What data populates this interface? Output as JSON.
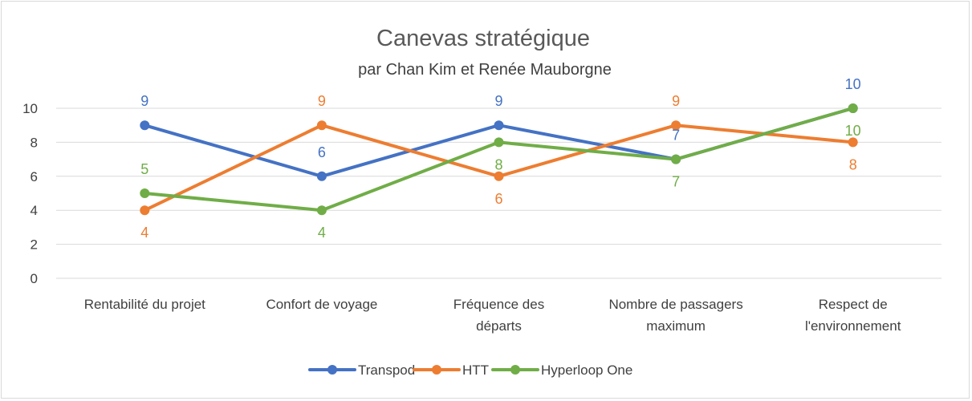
{
  "chart_data": {
    "type": "line",
    "title": "Canevas stratégique",
    "subtitle": "par Chan Kim et Renée Mauborgne",
    "categories": [
      [
        "Rentabilité du projet"
      ],
      [
        "Confort de voyage"
      ],
      [
        "Fréquence des",
        "départs"
      ],
      [
        "Nombre de passagers",
        "maximum"
      ],
      [
        "Respect de",
        "l'environnement"
      ]
    ],
    "ylim": [
      0,
      10
    ],
    "yticks": [
      "0",
      "2",
      "4",
      "6",
      "8",
      "10"
    ],
    "grid": true,
    "legend_position": "bottom",
    "series": [
      {
        "name": "Transpod",
        "color": "#4472c4",
        "values": [
          9,
          6,
          9,
          7,
          10
        ],
        "label_pos": [
          "above",
          "above",
          "above",
          "above",
          "above"
        ]
      },
      {
        "name": "HTT",
        "color": "#ed7d31",
        "values": [
          4,
          9,
          6,
          9,
          8
        ],
        "label_pos": [
          "below",
          "above",
          "below",
          "above",
          "below"
        ]
      },
      {
        "name": "Hyperloop One",
        "color": "#70ad47",
        "values": [
          5,
          4,
          8,
          7,
          10
        ],
        "label_pos": [
          "above",
          "below",
          "below",
          "below",
          "below"
        ]
      }
    ]
  }
}
